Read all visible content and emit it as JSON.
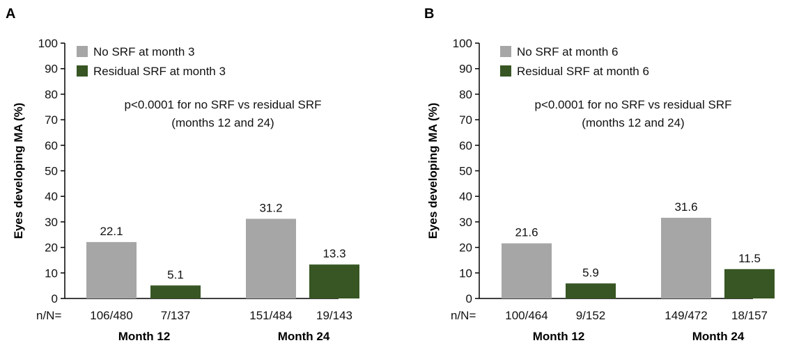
{
  "chart_data": [
    {
      "type": "bar",
      "panel": "A",
      "ylabel": "Eyes developing MA (%)",
      "ylim": [
        0,
        100
      ],
      "yticks": [
        0,
        10,
        20,
        30,
        40,
        50,
        60,
        70,
        80,
        90,
        100
      ],
      "categories": [
        "Month 12",
        "Month 24"
      ],
      "series": [
        {
          "name": "No SRF at month 3",
          "color": "#a6a6a6",
          "values": [
            22.1,
            31.2
          ],
          "labels": [
            "22.1",
            "31.2"
          ],
          "counts": [
            "106/480",
            "151/484"
          ]
        },
        {
          "name": "Residual SRF at month 3",
          "color": "#375623",
          "values": [
            5.1,
            13.3
          ],
          "labels": [
            "5.1",
            "13.3"
          ],
          "counts": [
            "7/137",
            "19/143"
          ]
        }
      ],
      "counts_prefix": "n/N=",
      "annotation": [
        "p<0.0001 for no SRF vs residual SRF",
        "(months 12 and 24)"
      ],
      "legend_position": "top-left",
      "grid": false
    },
    {
      "type": "bar",
      "panel": "B",
      "ylabel": "Eyes developing MA (%)",
      "ylim": [
        0,
        100
      ],
      "yticks": [
        0,
        10,
        20,
        30,
        40,
        50,
        60,
        70,
        80,
        90,
        100
      ],
      "categories": [
        "Month 12",
        "Month 24"
      ],
      "series": [
        {
          "name": "No SRF at month 6",
          "color": "#a6a6a6",
          "values": [
            21.6,
            31.6
          ],
          "labels": [
            "21.6",
            "31.6"
          ],
          "counts": [
            "100/464",
            "149/472"
          ]
        },
        {
          "name": "Residual SRF at month 6",
          "color": "#375623",
          "values": [
            5.9,
            11.5
          ],
          "labels": [
            "5.9",
            "11.5"
          ],
          "counts": [
            "9/152",
            "18/157"
          ]
        }
      ],
      "counts_prefix": "n/N=",
      "annotation": [
        "p<0.0001 for no SRF vs residual SRF",
        "(months 12 and 24)"
      ],
      "legend_position": "top-left",
      "grid": false
    }
  ]
}
